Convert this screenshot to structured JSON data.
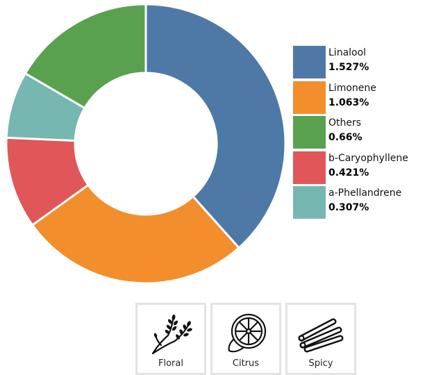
{
  "chart_data": {
    "type": "pie",
    "title": "",
    "categories": [
      "Linalool",
      "Limonene",
      "Others",
      "b-Caryophyllene",
      "a-Phellandrene"
    ],
    "values": [
      1.527,
      1.063,
      0.66,
      0.421,
      0.307
    ],
    "value_labels": [
      "1.527%",
      "1.063%",
      "0.66%",
      "0.421%",
      "0.307%"
    ],
    "unit": "%",
    "donut": true,
    "draw_order": [
      "Linalool",
      "Limonene",
      "b-Caryophyllene",
      "a-Phellandrene",
      "Others"
    ],
    "legend_position": "right",
    "colors": {
      "Linalool": "#4e79a7",
      "Limonene": "#f28e2b",
      "Others": "#59a14f",
      "b-Caryophyllene": "#e15759",
      "a-Phellandrene": "#76b7b2"
    }
  },
  "aromas": [
    {
      "label": "Floral",
      "icon": "lavender-icon"
    },
    {
      "label": "Citrus",
      "icon": "lemon-slice-icon"
    },
    {
      "label": "Spicy",
      "icon": "cinnamon-sticks-icon"
    }
  ]
}
